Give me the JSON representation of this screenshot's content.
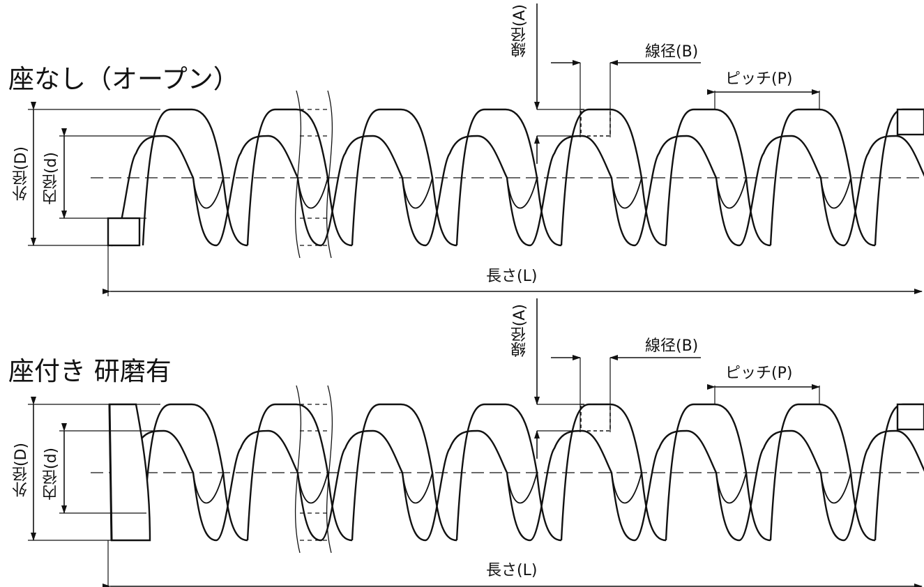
{
  "figures": [
    {
      "title": "座なし（オープン）",
      "labels": {
        "outer_diameter": "外径(D)",
        "inner_diameter": "内径(d)",
        "wire_a": "線径(A)",
        "wire_b": "線径(B)",
        "pitch": "ピッチ(P)",
        "length": "長さ(L)"
      }
    },
    {
      "title": "座付き 研磨有",
      "labels": {
        "outer_diameter": "外径(D)",
        "inner_diameter": "内径(d)",
        "wire_a": "線径(A)",
        "wire_b": "線径(B)",
        "pitch": "ピッチ(P)",
        "length": "長さ(L)"
      }
    }
  ]
}
